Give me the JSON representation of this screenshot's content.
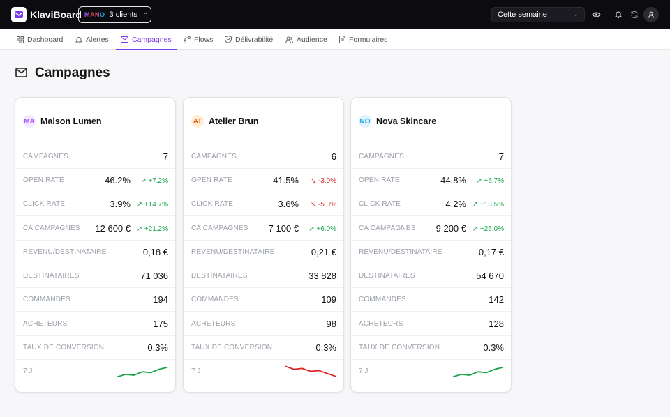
{
  "app": {
    "title": "KlaviBoard"
  },
  "client_selector": {
    "badge_letters": [
      "M",
      "A",
      "N",
      "O"
    ],
    "label": "3 clients"
  },
  "period": {
    "value": "Cette semaine"
  },
  "nav": {
    "tabs": [
      {
        "label": "Dashboard",
        "icon": "grid-icon"
      },
      {
        "label": "Alertes",
        "icon": "bell-icon"
      },
      {
        "label": "Campagnes",
        "icon": "mail-icon",
        "active": true
      },
      {
        "label": "Flows",
        "icon": "flow-icon"
      },
      {
        "label": "Délivrabilité",
        "icon": "shield-icon"
      },
      {
        "label": "Audience",
        "icon": "users-icon"
      },
      {
        "label": "Formulaires",
        "icon": "form-icon"
      }
    ]
  },
  "page": {
    "title": "Campagnes"
  },
  "cards": [
    {
      "initials": "MA",
      "name": "Maison Lumen",
      "badge_color": "#a855f7",
      "badge_bg": "#f3e8ff",
      "rows": [
        {
          "label": "CAMPAGNES",
          "value": "7",
          "delta": ""
        },
        {
          "label": "OPEN RATE",
          "value": "46.2%",
          "delta": "+7.2%",
          "dir": "up"
        },
        {
          "label": "CLICK RATE",
          "value": "3.9%",
          "delta": "+14.7%",
          "dir": "up"
        },
        {
          "label": "CA CAMPAGNES",
          "value": "12 600 €",
          "delta": "+21.2%",
          "dir": "up"
        },
        {
          "label": "REVENU/DESTINATAIRE",
          "value": "0,18 €",
          "delta": ""
        },
        {
          "label": "DESTINATAIRES",
          "value": "71 036",
          "delta": ""
        },
        {
          "label": "COMMANDES",
          "value": "194",
          "delta": ""
        },
        {
          "label": "ACHETEURS",
          "value": "175",
          "delta": ""
        },
        {
          "label": "TAUX DE CONVERSION",
          "value": "0.3%",
          "delta": ""
        }
      ],
      "spark_label": "7 J",
      "spark_color": "#16a34a",
      "spark": [
        0.15,
        0.3,
        0.25,
        0.45,
        0.4,
        0.6,
        0.72
      ]
    },
    {
      "initials": "AT",
      "name": "Atelier Brun",
      "badge_color": "#ea580c",
      "badge_bg": "#ffedd5",
      "rows": [
        {
          "label": "CAMPAGNES",
          "value": "6",
          "delta": ""
        },
        {
          "label": "OPEN RATE",
          "value": "41.5%",
          "delta": "-3.0%",
          "dir": "down"
        },
        {
          "label": "CLICK RATE",
          "value": "3.6%",
          "delta": "-5.3%",
          "dir": "down"
        },
        {
          "label": "CA CAMPAGNES",
          "value": "7 100 €",
          "delta": "+6.0%",
          "dir": "up"
        },
        {
          "label": "REVENU/DESTINATAIRE",
          "value": "0,21 €",
          "delta": ""
        },
        {
          "label": "DESTINATAIRES",
          "value": "33 828",
          "delta": ""
        },
        {
          "label": "COMMANDES",
          "value": "109",
          "delta": ""
        },
        {
          "label": "ACHETEURS",
          "value": "98",
          "delta": ""
        },
        {
          "label": "TAUX DE CONVERSION",
          "value": "0.3%",
          "delta": ""
        }
      ],
      "spark_label": "7 J",
      "spark_color": "#dc2626",
      "spark": [
        0.78,
        0.6,
        0.65,
        0.48,
        0.52,
        0.35,
        0.18
      ]
    },
    {
      "initials": "NO",
      "name": "Nova Skincare",
      "badge_color": "#0ea5e9",
      "badge_bg": "#e0f2fe",
      "rows": [
        {
          "label": "CAMPAGNES",
          "value": "7",
          "delta": ""
        },
        {
          "label": "OPEN RATE",
          "value": "44.8%",
          "delta": "+6.7%",
          "dir": "up"
        },
        {
          "label": "CLICK RATE",
          "value": "4.2%",
          "delta": "+13.5%",
          "dir": "up"
        },
        {
          "label": "CA CAMPAGNES",
          "value": "9 200 €",
          "delta": "+26.0%",
          "dir": "up"
        },
        {
          "label": "REVENU/DESTINATAIRE",
          "value": "0,17 €",
          "delta": ""
        },
        {
          "label": "DESTINATAIRES",
          "value": "54 670",
          "delta": ""
        },
        {
          "label": "COMMANDES",
          "value": "142",
          "delta": ""
        },
        {
          "label": "ACHETEURS",
          "value": "128",
          "delta": ""
        },
        {
          "label": "TAUX DE CONVERSION",
          "value": "0.3%",
          "delta": ""
        }
      ],
      "spark_label": "7 J",
      "spark_color": "#16a34a",
      "spark": [
        0.15,
        0.3,
        0.25,
        0.45,
        0.4,
        0.6,
        0.72
      ]
    }
  ]
}
